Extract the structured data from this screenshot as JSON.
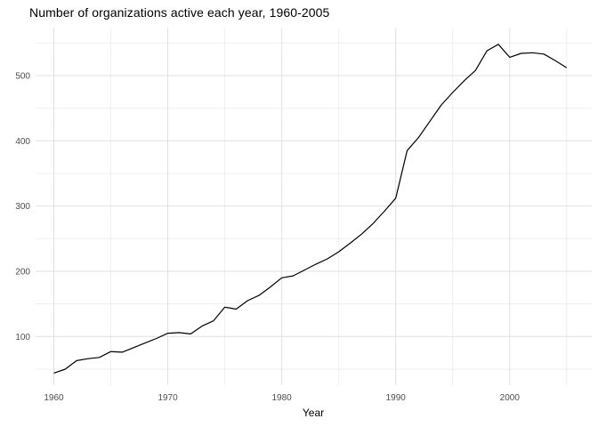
{
  "chart_data": {
    "type": "line",
    "title": "Number of organizations active each year, 1960-2005",
    "xlabel": "Year",
    "ylabel": "",
    "legend_position": "none",
    "grid": true,
    "x": [
      1960,
      1961,
      1962,
      1963,
      1964,
      1965,
      1966,
      1967,
      1968,
      1969,
      1970,
      1971,
      1972,
      1973,
      1974,
      1975,
      1976,
      1977,
      1978,
      1979,
      1980,
      1981,
      1982,
      1983,
      1984,
      1985,
      1986,
      1987,
      1988,
      1989,
      1990,
      1991,
      1992,
      1993,
      1994,
      1995,
      1996,
      1997,
      1998,
      1999,
      2000,
      2001,
      2002,
      2003,
      2004,
      2005
    ],
    "values": [
      44,
      50,
      63,
      66,
      68,
      77,
      76,
      83,
      90,
      97,
      105,
      106,
      104,
      116,
      124,
      145,
      142,
      155,
      163,
      176,
      190,
      193,
      202,
      211,
      219,
      230,
      243,
      257,
      273,
      292,
      312,
      385,
      405,
      430,
      455,
      474,
      492,
      508,
      538,
      548,
      528,
      534,
      535,
      533,
      523,
      512
    ],
    "xticks": [
      1960,
      1970,
      1980,
      1990,
      2000
    ],
    "xticks_minor": [
      1965,
      1975,
      1985,
      1995,
      2005
    ],
    "yticks": [
      100,
      200,
      300,
      400,
      500
    ],
    "yticks_minor": [
      50,
      150,
      250,
      350,
      450,
      550
    ],
    "xlim": [
      1958.4,
      2007.2
    ],
    "ylim": [
      25.4,
      573.6
    ],
    "colors": {
      "line": "#000000",
      "grid_major": "#e0e0e0",
      "grid_minor": "#efefef",
      "tick_label": "#4d4d4d",
      "title": "#000000",
      "axis_label": "#000000",
      "background": "#ffffff"
    }
  }
}
